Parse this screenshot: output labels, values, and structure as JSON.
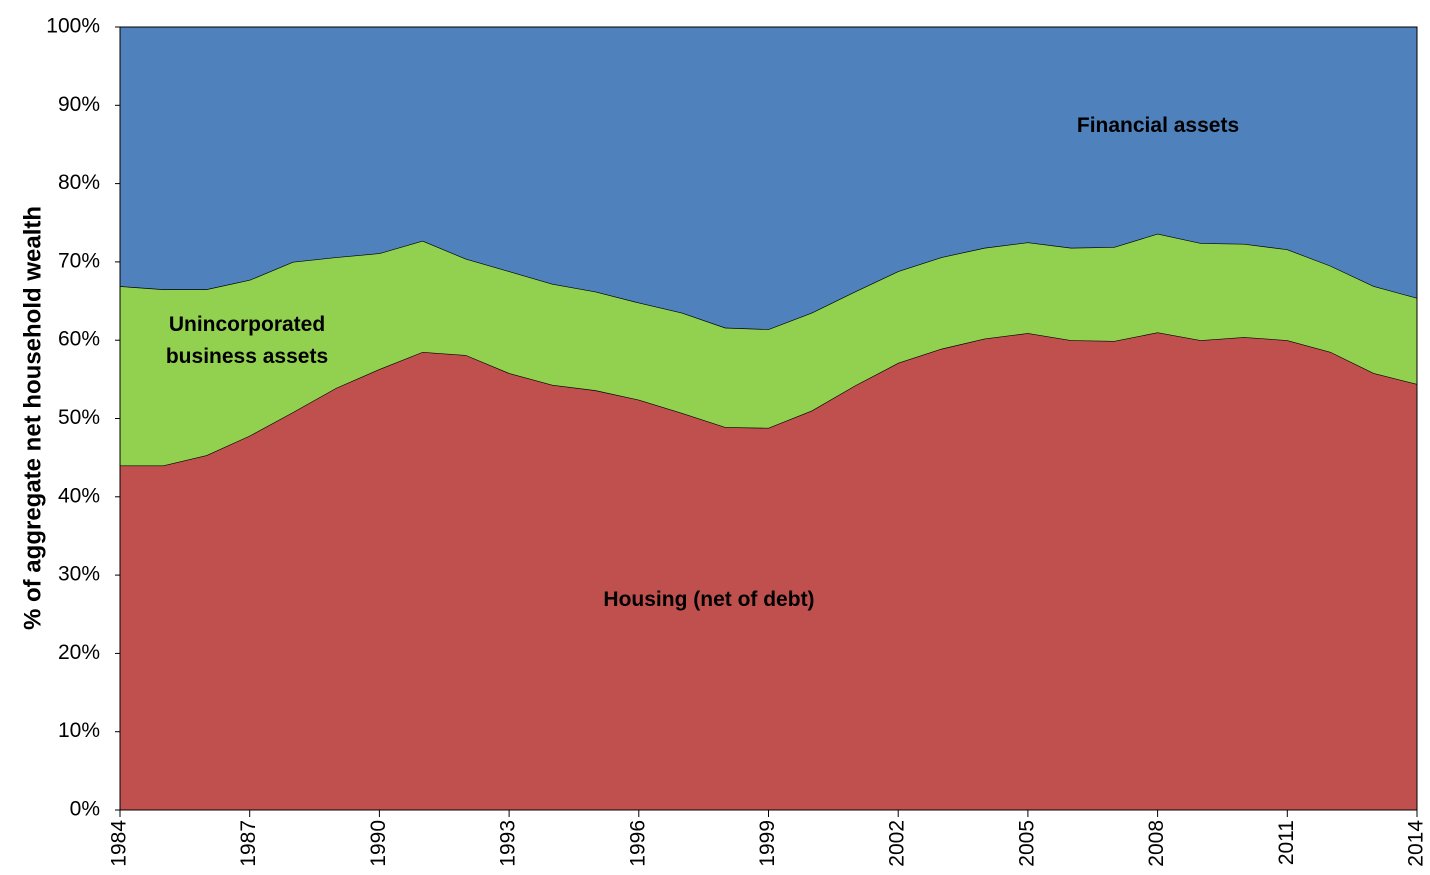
{
  "chart_data": {
    "type": "stacked-area",
    "ylabel": "% of aggregate net household wealth",
    "x": [
      1984,
      1985,
      1986,
      1987,
      1988,
      1989,
      1990,
      1991,
      1992,
      1993,
      1994,
      1995,
      1996,
      1997,
      1998,
      1999,
      2000,
      2001,
      2002,
      2003,
      2004,
      2005,
      2006,
      2007,
      2008,
      2009,
      2010,
      2011,
      2012,
      2013,
      2014
    ],
    "xlim": [
      1984,
      2014
    ],
    "xticks": [
      1984,
      1987,
      1990,
      1993,
      1996,
      1999,
      2002,
      2005,
      2008,
      2011,
      2014
    ],
    "ylim": [
      0,
      100
    ],
    "yticks": [
      {
        "value": 0,
        "label": "0%"
      },
      {
        "value": 10,
        "label": "10%"
      },
      {
        "value": 20,
        "label": "20%"
      },
      {
        "value": 30,
        "label": "30%"
      },
      {
        "value": 40,
        "label": "40%"
      },
      {
        "value": 50,
        "label": "50%"
      },
      {
        "value": 60,
        "label": "60%"
      },
      {
        "value": 70,
        "label": "70%"
      },
      {
        "value": 80,
        "label": "80%"
      },
      {
        "value": 90,
        "label": "90%"
      },
      {
        "value": 100,
        "label": "100%"
      }
    ],
    "series": [
      {
        "name": "Housing (net of debt)",
        "color": "#c0504d",
        "values": [
          44.0,
          44.0,
          45.3,
          47.8,
          50.8,
          53.9,
          56.3,
          58.5,
          58.1,
          55.8,
          54.3,
          53.6,
          52.4,
          50.7,
          48.9,
          48.8,
          51.0,
          54.2,
          57.1,
          58.9,
          60.2,
          60.9,
          60.0,
          59.9,
          61.0,
          60.0,
          60.4,
          60.0,
          58.5,
          55.8,
          54.4
        ]
      },
      {
        "name": "Unincorporated business assets",
        "color": "#92d050",
        "values": [
          22.9,
          22.5,
          21.2,
          19.9,
          19.2,
          16.7,
          14.8,
          14.2,
          12.3,
          13.0,
          12.9,
          12.6,
          12.4,
          12.8,
          12.7,
          12.6,
          12.5,
          12.0,
          11.7,
          11.7,
          11.6,
          11.6,
          11.8,
          12.0,
          12.6,
          12.4,
          11.9,
          11.6,
          11.0,
          11.1,
          11.0
        ]
      },
      {
        "name": "Financial assets",
        "color": "#4f81bd",
        "values": [
          33.1,
          33.5,
          33.5,
          32.3,
          30.0,
          29.4,
          28.9,
          27.3,
          29.6,
          31.2,
          32.8,
          33.8,
          35.2,
          36.5,
          38.4,
          38.6,
          36.5,
          33.8,
          31.2,
          29.4,
          28.2,
          27.5,
          28.2,
          28.1,
          26.4,
          27.6,
          27.7,
          28.4,
          30.5,
          33.1,
          34.6
        ]
      }
    ]
  }
}
